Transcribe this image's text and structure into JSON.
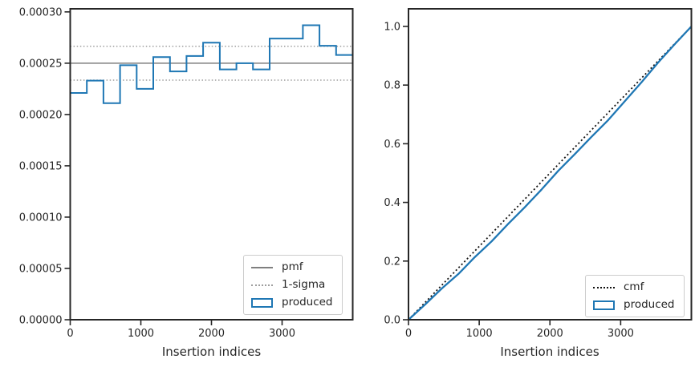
{
  "colors": {
    "produced": "#1f77b4",
    "pmf": "#7f7f7f",
    "sigma": "#9e9e9e",
    "cmf": "#111111",
    "spine": "#262626",
    "text": "#262626"
  },
  "chart_data": [
    {
      "id": "pmf-plot",
      "type": "line",
      "subtype": "step-histogram",
      "title": "",
      "xlabel": "Insertion indices",
      "ylabel": "",
      "grid": false,
      "xlim": [
        0,
        4000
      ],
      "ylim": [
        0,
        0.000303
      ],
      "xticks": {
        "values": [
          0,
          1000,
          2000,
          3000
        ],
        "labels": [
          "0",
          "1000",
          "2000",
          "3000"
        ]
      },
      "yticks": {
        "values": [
          0,
          5e-05,
          0.0001,
          0.00015,
          0.0002,
          0.00025,
          0.0003
        ],
        "labels": [
          "0.00000",
          "0.00005",
          "0.00010",
          "0.00015",
          "0.00020",
          "0.00025",
          "0.00030"
        ]
      },
      "series": [
        {
          "name": "pmf",
          "style": "hline-solid",
          "color": "#7f7f7f",
          "value": 0.00025
        },
        {
          "name": "1-sigma",
          "style": "hline-dotted",
          "color": "#9e9e9e",
          "values": [
            0.0002335,
            0.0002665
          ]
        },
        {
          "name": "produced",
          "style": "step-histogram",
          "color": "#1f77b4",
          "bin_edges": [
            0,
            235,
            471,
            706,
            941,
            1176,
            1412,
            1647,
            1882,
            2118,
            2353,
            2588,
            2824,
            3059,
            3294,
            3529,
            3765,
            4000
          ],
          "bin_values": [
            0.000221,
            0.000233,
            0.000211,
            0.000248,
            0.000225,
            0.000256,
            0.000242,
            0.000257,
            0.00027,
            0.000244,
            0.00025,
            0.000244,
            0.000274,
            0.000274,
            0.000287,
            0.000267,
            0.000258
          ]
        }
      ],
      "legend": {
        "position": "lower right",
        "entries": [
          "pmf",
          "1-sigma",
          "produced"
        ]
      }
    },
    {
      "id": "cmf-plot",
      "type": "line",
      "title": "",
      "xlabel": "Insertion indices",
      "ylabel": "",
      "grid": false,
      "xlim": [
        0,
        4000
      ],
      "ylim": [
        0,
        1.06
      ],
      "xticks": {
        "values": [
          0,
          1000,
          2000,
          3000
        ],
        "labels": [
          "0",
          "1000",
          "2000",
          "3000"
        ]
      },
      "yticks": {
        "values": [
          0,
          0.2,
          0.4,
          0.6,
          0.8,
          1.0
        ],
        "labels": [
          "0.0",
          "0.2",
          "0.4",
          "0.6",
          "0.8",
          "1.0"
        ]
      },
      "series": [
        {
          "name": "cmf",
          "style": "line-dotted",
          "color": "#111111",
          "x": [
            0,
            4000
          ],
          "y": [
            0,
            1.0
          ]
        },
        {
          "name": "produced",
          "style": "line-solid",
          "color": "#1f77b4",
          "x": [
            0,
            235,
            471,
            706,
            941,
            1176,
            1412,
            1647,
            1882,
            2118,
            2353,
            2588,
            2824,
            3059,
            3294,
            3529,
            3765,
            4000
          ],
          "y": [
            0,
            0.0519,
            0.1066,
            0.1561,
            0.2143,
            0.2671,
            0.3272,
            0.384,
            0.4443,
            0.5076,
            0.5649,
            0.6236,
            0.6808,
            0.7451,
            0.8094,
            0.8768,
            0.9395,
            1.0
          ]
        }
      ],
      "legend": {
        "position": "lower right",
        "entries": [
          "cmf",
          "produced"
        ]
      }
    }
  ]
}
